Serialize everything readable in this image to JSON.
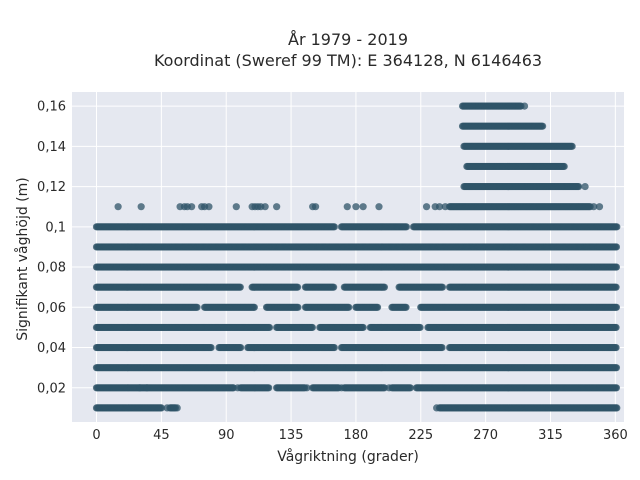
{
  "chart_data": {
    "type": "scatter",
    "title_line1": "År 1979 - 2019",
    "title_line2": "Koordinat (Sweref 99 TM): E 364128, N 6146463",
    "xlabel": "Vågriktning (grader)",
    "ylabel": "Signifikant våghöjd (m)",
    "xlim": [
      -17,
      366
    ],
    "ylim": [
      0.003,
      0.167
    ],
    "xticks": [
      0,
      45,
      90,
      135,
      180,
      225,
      270,
      315,
      360
    ],
    "yticks": [
      0.02,
      0.04,
      0.06,
      0.08,
      0.1,
      0.12,
      0.14,
      0.16
    ],
    "ytick_labels": [
      "0,02",
      "0,04",
      "0,06",
      "0,08",
      "0,1",
      "0,12",
      "0,14",
      "0,16"
    ],
    "grid": true,
    "marker_color": "#2f5468",
    "bands": [
      {
        "y": 0.01,
        "ranges": [
          [
            0,
            45
          ],
          [
            51,
            55
          ],
          [
            238,
            361
          ]
        ]
      },
      {
        "y": 0.02,
        "ranges": [
          [
            0,
            95
          ],
          [
            100,
            120
          ],
          [
            125,
            145
          ],
          [
            150,
            168
          ],
          [
            172,
            200
          ],
          [
            205,
            218
          ],
          [
            222,
            361
          ]
        ]
      },
      {
        "y": 0.03,
        "ranges": [
          [
            0,
            361
          ]
        ]
      },
      {
        "y": 0.04,
        "ranges": [
          [
            0,
            80
          ],
          [
            85,
            100
          ],
          [
            105,
            165
          ],
          [
            170,
            240
          ],
          [
            245,
            361
          ]
        ]
      },
      {
        "y": 0.05,
        "ranges": [
          [
            0,
            120
          ],
          [
            125,
            150
          ],
          [
            155,
            185
          ],
          [
            190,
            225
          ],
          [
            230,
            361
          ]
        ]
      },
      {
        "y": 0.06,
        "ranges": [
          [
            0,
            70
          ],
          [
            75,
            110
          ],
          [
            118,
            140
          ],
          [
            145,
            175
          ],
          [
            180,
            195
          ],
          [
            205,
            215
          ],
          [
            225,
            361
          ]
        ]
      },
      {
        "y": 0.07,
        "ranges": [
          [
            0,
            100
          ],
          [
            108,
            140
          ],
          [
            145,
            165
          ],
          [
            172,
            200
          ],
          [
            210,
            240
          ],
          [
            245,
            361
          ]
        ]
      },
      {
        "y": 0.08,
        "ranges": [
          [
            0,
            361
          ]
        ]
      },
      {
        "y": 0.09,
        "ranges": [
          [
            0,
            361
          ]
        ]
      },
      {
        "y": 0.1,
        "ranges": [
          [
            0,
            165
          ],
          [
            170,
            215
          ],
          [
            220,
            361
          ]
        ]
      },
      {
        "y": 0.11,
        "ranges": [
          [
            245,
            343
          ]
        ]
      },
      {
        "y": 0.12,
        "ranges": [
          [
            255,
            335
          ]
        ]
      },
      {
        "y": 0.13,
        "ranges": [
          [
            257,
            325
          ]
        ]
      },
      {
        "y": 0.14,
        "ranges": [
          [
            255,
            330
          ]
        ]
      },
      {
        "y": 0.15,
        "ranges": [
          [
            254,
            310
          ]
        ]
      },
      {
        "y": 0.16,
        "ranges": [
          [
            254,
            295
          ]
        ]
      }
    ],
    "isolated_points": [
      [
        15,
        0.11
      ],
      [
        31,
        0.11
      ],
      [
        58,
        0.11
      ],
      [
        61,
        0.11
      ],
      [
        63,
        0.11
      ],
      [
        66,
        0.11
      ],
      [
        73,
        0.11
      ],
      [
        75,
        0.11
      ],
      [
        78,
        0.11
      ],
      [
        97,
        0.11
      ],
      [
        108,
        0.11
      ],
      [
        110,
        0.11
      ],
      [
        112,
        0.11
      ],
      [
        114,
        0.11
      ],
      [
        117,
        0.11
      ],
      [
        125,
        0.11
      ],
      [
        150,
        0.11
      ],
      [
        152,
        0.11
      ],
      [
        174,
        0.11
      ],
      [
        180,
        0.11
      ],
      [
        185,
        0.11
      ],
      [
        196,
        0.11
      ],
      [
        229,
        0.11
      ],
      [
        235,
        0.11
      ],
      [
        238,
        0.11
      ],
      [
        242,
        0.11
      ],
      [
        345,
        0.11
      ],
      [
        349,
        0.11
      ],
      [
        339,
        0.12
      ],
      [
        297,
        0.16
      ],
      [
        30,
        0.02
      ],
      [
        35,
        0.02
      ],
      [
        95,
        0.02
      ],
      [
        98,
        0.02
      ],
      [
        146,
        0.02
      ],
      [
        170,
        0.02
      ],
      [
        203,
        0.02
      ],
      [
        49,
        0.01
      ],
      [
        56,
        0.01
      ],
      [
        236,
        0.01
      ]
    ]
  }
}
